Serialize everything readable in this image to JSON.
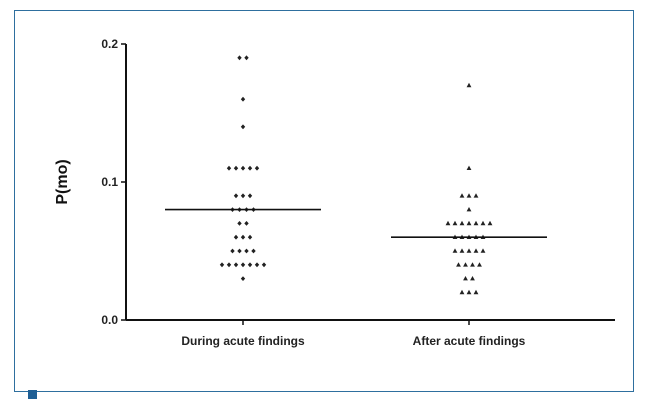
{
  "chart_data": {
    "type": "scatter",
    "title": "",
    "xlabel": "",
    "ylabel": "P(mo)",
    "ylim": [
      0,
      0.2
    ],
    "yticks": [
      "0.0",
      "0.1",
      "0.2"
    ],
    "categories": [
      "During acute findings",
      "After acute findings"
    ],
    "series": [
      {
        "category": "During acute findings",
        "marker": "diamond",
        "median": 0.08,
        "values": [
          0.19,
          0.19,
          0.16,
          0.14,
          0.11,
          0.11,
          0.11,
          0.11,
          0.11,
          0.09,
          0.09,
          0.09,
          0.08,
          0.08,
          0.08,
          0.08,
          0.07,
          0.07,
          0.06,
          0.06,
          0.06,
          0.05,
          0.05,
          0.05,
          0.05,
          0.04,
          0.04,
          0.04,
          0.04,
          0.04,
          0.04,
          0.04,
          0.03
        ]
      },
      {
        "category": "After acute findings",
        "marker": "triangle",
        "median": 0.06,
        "values": [
          0.17,
          0.11,
          0.09,
          0.09,
          0.09,
          0.08,
          0.07,
          0.07,
          0.07,
          0.07,
          0.07,
          0.07,
          0.07,
          0.06,
          0.06,
          0.06,
          0.06,
          0.06,
          0.05,
          0.05,
          0.05,
          0.05,
          0.05,
          0.04,
          0.04,
          0.04,
          0.04,
          0.03,
          0.03,
          0.02,
          0.02,
          0.02
        ]
      }
    ],
    "colors": {
      "points": "#222222",
      "axis": "#111111",
      "frame": "#2e6f9e",
      "corner": "#1f5f95"
    }
  }
}
